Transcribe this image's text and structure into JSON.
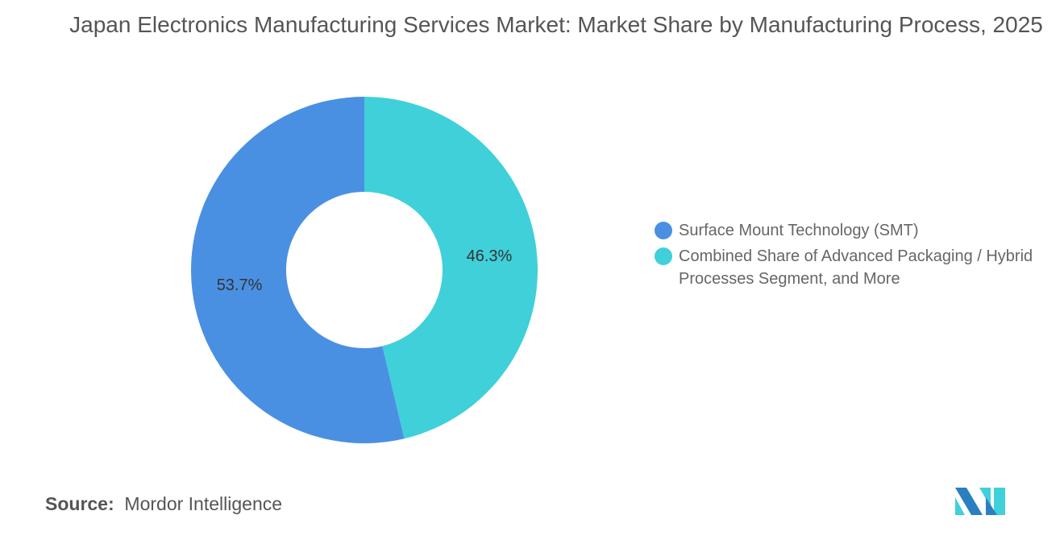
{
  "chart_data": {
    "type": "pie",
    "donut": true,
    "title": "Japan Electronics Manufacturing Services Market: Market Share by Manufacturing Process, 2025",
    "categories": [
      "Combined Share of Advanced Packaging / Hybrid Processes Segment, and More",
      "Surface Mount Technology (SMT)"
    ],
    "values": [
      46.3,
      53.7
    ],
    "labels": [
      "46.3%",
      "53.7%"
    ],
    "colors": [
      "#3fd0da",
      "#4a90e2"
    ],
    "legend_position": "right",
    "legend": [
      {
        "label": "Surface Mount Technology (SMT)",
        "color": "#4a90e2"
      },
      {
        "label": "Combined Share of Advanced Packaging / Hybrid Processes Segment, and More",
        "color": "#3fd0da"
      }
    ]
  },
  "source": {
    "label": "Source:",
    "value": "Mordor Intelligence"
  },
  "logo": {
    "name": "mordor-intelligence-logo",
    "colors": [
      "#2a7fc1",
      "#3fd0da"
    ]
  }
}
